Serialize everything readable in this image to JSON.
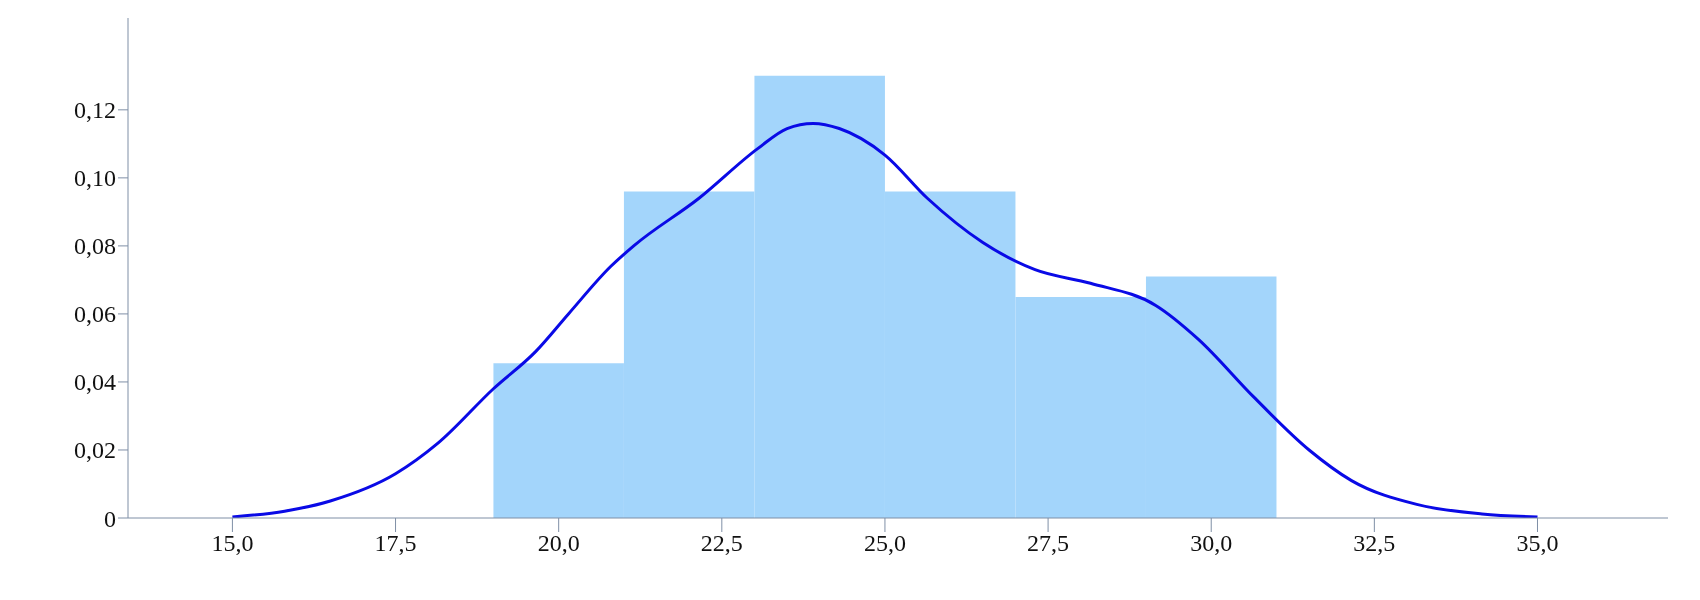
{
  "chart_data": {
    "type": "histogram",
    "bins": [
      19,
      21,
      23,
      25,
      27,
      29,
      31
    ],
    "values": [
      0.0455,
      0.096,
      0.13,
      0.096,
      0.065,
      0.071
    ],
    "color": "#a3d5fb",
    "series": [
      {
        "type": "line",
        "color": "#0a0ae6",
        "x": [
          15.0,
          15.8,
          16.5,
          17.5,
          18.15,
          19.0,
          19.65,
          20.15,
          20.8,
          21.15,
          22.15,
          23.05,
          23.5,
          23.9,
          24.3,
          25.0,
          25.65,
          26.5,
          27.3,
          28.15,
          29.15,
          29.8,
          30.65,
          31.5,
          32.15,
          33.15,
          34.15,
          35.0
        ],
        "values": [
          0.0003,
          0.002,
          0.005,
          0.013,
          0.022,
          0.038,
          0.049,
          0.06,
          0.074,
          0.08,
          0.094,
          0.1086,
          0.1145,
          0.116,
          0.1145,
          0.1067,
          0.094,
          0.081,
          0.073,
          0.069,
          0.0625,
          0.0526,
          0.0356,
          0.02,
          0.011,
          0.004,
          0.0012,
          0.0003
        ]
      }
    ],
    "xlim": [
      13.4,
      37
    ],
    "xticks": [
      {
        "value": 15,
        "label": "15,0"
      },
      {
        "value": 17.5,
        "label": "17,5"
      },
      {
        "value": 20,
        "label": "20,0"
      },
      {
        "value": 22.5,
        "label": "22,5"
      },
      {
        "value": 25,
        "label": "25,0"
      },
      {
        "value": 27.5,
        "label": "27,5"
      },
      {
        "value": 30,
        "label": "30,0"
      },
      {
        "value": 32.5,
        "label": "32,5"
      },
      {
        "value": 35,
        "label": "35,0"
      }
    ],
    "ylim": [
      0,
      0.147
    ],
    "yticks": [
      0,
      {
        "value": 0.02,
        "label": "0,02"
      },
      {
        "value": 0.04,
        "label": "0,04"
      },
      {
        "value": 0.06,
        "label": "0,06"
      },
      {
        "value": 0.08,
        "label": "0,08"
      },
      {
        "value": 0.1,
        "label": "0,10"
      },
      {
        "value": 0.12,
        "label": "0,12"
      }
    ],
    "grid": false,
    "marker": "none",
    "line_style": "solid"
  }
}
